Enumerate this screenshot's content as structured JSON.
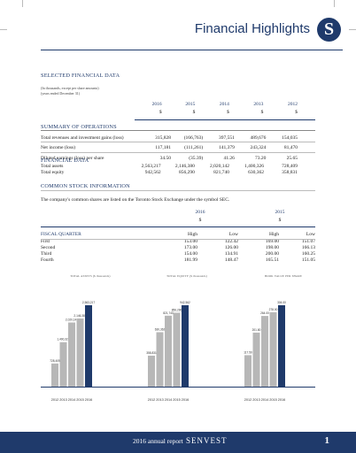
{
  "header": {
    "title": "Financial Highlights",
    "logo_letter": "S"
  },
  "selected": {
    "title": "SELECTED FINANCIAL DATA",
    "note1": "(In thousands, except per share amounts)",
    "note2": "(years ended December 31)",
    "years": [
      "2016",
      "2015",
      "2014",
      "2013",
      "2012"
    ],
    "currency": "$"
  },
  "summary": {
    "title": "SUMMARY OF OPERATIONS",
    "rows": [
      {
        "label": "Total revenues and investment gains (loss)",
        "values": [
          "315,828",
          "(166,763)",
          "397,551",
          "489,676",
          "154,035"
        ]
      },
      {
        "label": "Net income (loss)",
        "values": [
          "117,181",
          "(111,261)",
          "141,379",
          "243,324",
          "81,470"
        ]
      },
      {
        "label": "Diluted earnings (loss) per share",
        "values": [
          "34.50",
          "(35.39)",
          "41.26",
          "73.20",
          "25.65"
        ]
      }
    ]
  },
  "position": {
    "title": "FINANCIAL DATA",
    "rows": [
      {
        "label": "Total assets",
        "values": [
          "2,563,217",
          "2,146,380",
          "2,020,142",
          "1,400,326",
          "728,409"
        ]
      },
      {
        "label": "Total equity",
        "values": [
          "942,562",
          "856,290",
          "821,740",
          "630,362",
          "358,831"
        ]
      }
    ]
  },
  "stock": {
    "title": "COMMON STOCK INFORMATION",
    "text": "The company's common shares are listed on the Toronto Stock Exchange under the symbol SEC.",
    "years": [
      "2016",
      "2015"
    ],
    "currency": "$",
    "quarter_label": "FISCAL QUARTER",
    "high": "High",
    "low": "Low",
    "rows": [
      {
        "q": "First",
        "v": [
          "153.00",
          "122.42",
          "169.00",
          "151.07"
        ]
      },
      {
        "q": "Second",
        "v": [
          "173.00",
          "126.00",
          "198.00",
          "166.13"
        ]
      },
      {
        "q": "Third",
        "v": [
          "154.00",
          "134.91",
          "200.00",
          "160.25"
        ]
      },
      {
        "q": "Fourth",
        "v": [
          "181.99",
          "148.47",
          "165.51",
          "151.05"
        ]
      }
    ]
  },
  "chart_data": [
    {
      "type": "bar",
      "title": "TOTAL ASSETS ($ thousands)",
      "categories": [
        "2012",
        "2013",
        "2014",
        "2015",
        "2016"
      ],
      "values": [
        728409,
        1400326,
        2020142,
        2146380,
        2563217
      ],
      "labels": [
        "728,409",
        "1,400,326",
        "2,020,142",
        "2,146,380",
        "2,563,217"
      ],
      "max": 2563217
    },
    {
      "type": "bar",
      "title": "TOTAL EQUITY ($ thousands)",
      "categories": [
        "2012",
        "2013",
        "2014",
        "2015",
        "2016"
      ],
      "values": [
        358831,
        630362,
        821740,
        856290,
        942562
      ],
      "labels": [
        "358,831",
        "630,362",
        "821,740",
        "856,290",
        "942,562"
      ],
      "max": 942562
    },
    {
      "type": "bar",
      "title": "BOOK VALUE PER SHARE",
      "categories": [
        "2012",
        "2013",
        "2014",
        "2015",
        "2016"
      ],
      "values": [
        117.5,
        201.8,
        264.0,
        278.0,
        304.0
      ],
      "labels": [
        "117.50",
        "201.80",
        "264.00",
        "278.00",
        "304.00"
      ],
      "max": 304
    }
  ],
  "colors": {
    "navy": "#1f3a6b",
    "gray_bar": "#b7b7b7"
  },
  "footer": {
    "text": "2016 annual report",
    "brand": "SENVEST",
    "page": "1"
  }
}
